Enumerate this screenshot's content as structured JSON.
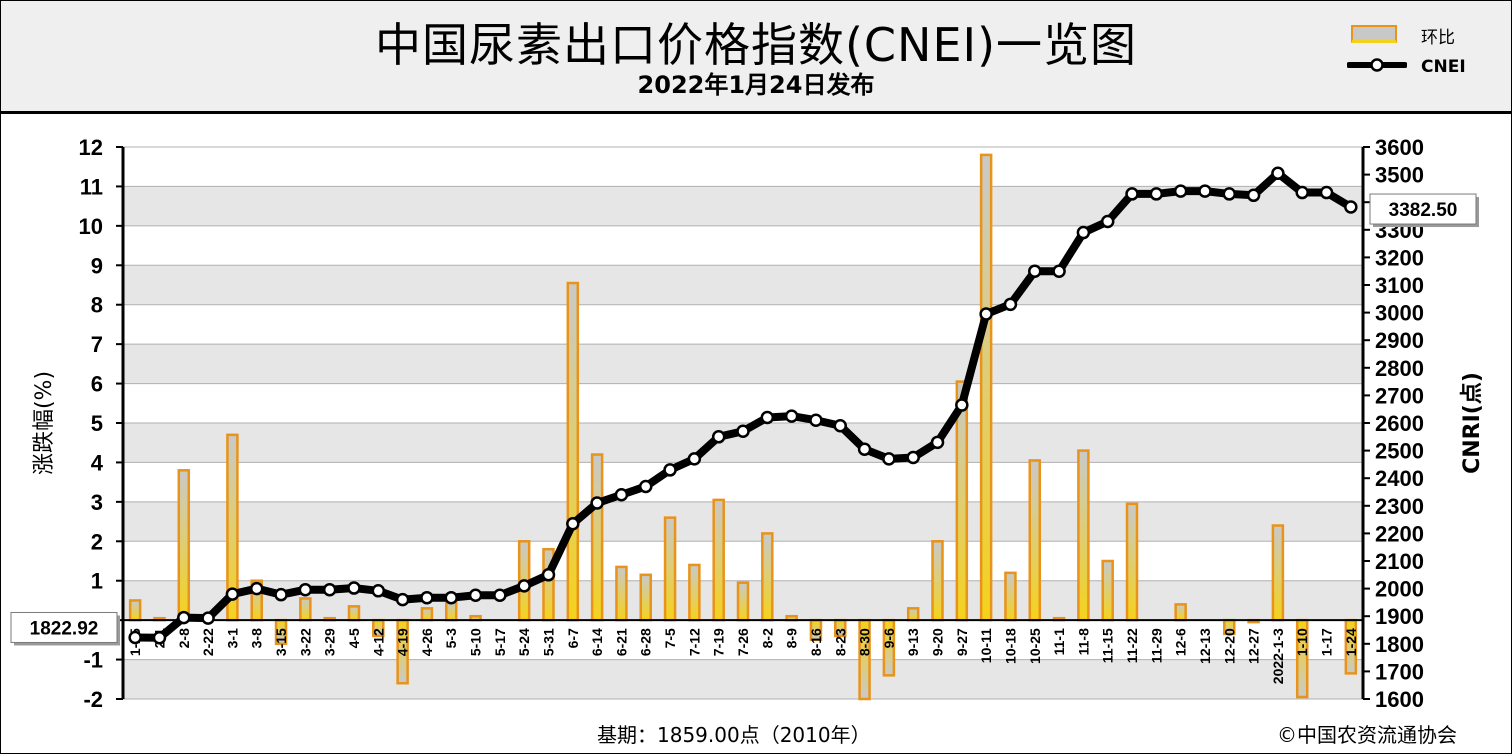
{
  "header": {
    "title": "中国尿素出口价格指数(CNEI)一览图",
    "subtitle": "2022年1月24日发布"
  },
  "legend": {
    "bar_label": "环比",
    "line_label": "CNEI"
  },
  "footer": {
    "base_text": "基期：1859.00点（2010年）",
    "copyright": "©中国农资流通协会"
  },
  "annotations": {
    "start_value": "1822.92",
    "end_value": "3382.50"
  },
  "colors": {
    "bar_fill_top": "#c9c9c9",
    "bar_fill_bottom": "#f5d21a",
    "bar_border": "#e8931a",
    "line": "#000000",
    "grid": "#b0b0b0",
    "plot_bg": "#ffffff",
    "band_bg": "#e6e6e6"
  },
  "chart_data": {
    "type": "bar",
    "xlabel": "",
    "ylabel": "涨跌幅(%)",
    "y2label": "CNRI(点)",
    "ylim": [
      -2,
      12
    ],
    "y2lim": [
      1600,
      3600
    ],
    "yticks": [
      -2,
      -1,
      0,
      1,
      2,
      3,
      4,
      5,
      6,
      7,
      8,
      9,
      10,
      11,
      12
    ],
    "y2ticks": [
      1600,
      1700,
      1800,
      1900,
      2000,
      2100,
      2200,
      2300,
      2400,
      2500,
      2600,
      2700,
      2800,
      2900,
      3000,
      3100,
      3200,
      3300,
      3400,
      3500,
      3600
    ],
    "grid": true,
    "legend_position": "top-right",
    "categories": [
      "1-25",
      "2-1",
      "2-8",
      "2-22",
      "3-1",
      "3-8",
      "3-15",
      "3-22",
      "3-29",
      "4-5",
      "4-12",
      "4-19",
      "4-26",
      "5-3",
      "5-10",
      "5-17",
      "5-24",
      "5-31",
      "6-7",
      "6-14",
      "6-21",
      "6-28",
      "7-5",
      "7-12",
      "7-19",
      "7-26",
      "8-2",
      "8-9",
      "8-16",
      "8-23",
      "8-30",
      "9-6",
      "9-13",
      "9-20",
      "9-27",
      "10-11",
      "10-18",
      "10-25",
      "11-1",
      "11-8",
      "11-15",
      "11-22",
      "11-29",
      "12-6",
      "12-13",
      "12-20",
      "12-27",
      "2022-1-3",
      "1-10",
      "1-17",
      "1-24"
    ],
    "series": [
      {
        "name": "环比",
        "type": "bar",
        "axis": "left",
        "values": [
          0.5,
          0.05,
          3.8,
          0.0,
          4.7,
          1.0,
          -0.6,
          0.55,
          0.05,
          0.35,
          -0.4,
          -1.6,
          0.3,
          0.45,
          0.1,
          0.0,
          2.0,
          1.8,
          8.55,
          4.2,
          1.35,
          1.15,
          2.6,
          1.4,
          3.05,
          0.95,
          2.2,
          0.1,
          -0.5,
          -0.4,
          -2.0,
          -1.4,
          0.3,
          2.0,
          6.05,
          11.8,
          1.2,
          4.05,
          0.05,
          4.3,
          1.5,
          2.95,
          0.0,
          0.4,
          0.0,
          -0.35,
          -0.05,
          2.4,
          -1.95,
          0.0,
          -1.35
        ]
      },
      {
        "name": "CNEI",
        "type": "line",
        "axis": "right",
        "values": [
          1822.92,
          1822,
          1895,
          1893,
          1980,
          2000,
          1978,
          1996,
          1996,
          2002,
          1992,
          1960,
          1967,
          1967,
          1976,
          1976,
          2010,
          2050,
          2235,
          2310,
          2340,
          2370,
          2430,
          2470,
          2550,
          2570,
          2620,
          2625,
          2610,
          2590,
          2505,
          2470,
          2475,
          2530,
          2665,
          2995,
          3030,
          3150,
          3150,
          3290,
          3330,
          3430,
          3430,
          3440,
          3440,
          3430,
          3425,
          3505,
          3435,
          3435,
          3382.5
        ]
      }
    ]
  }
}
